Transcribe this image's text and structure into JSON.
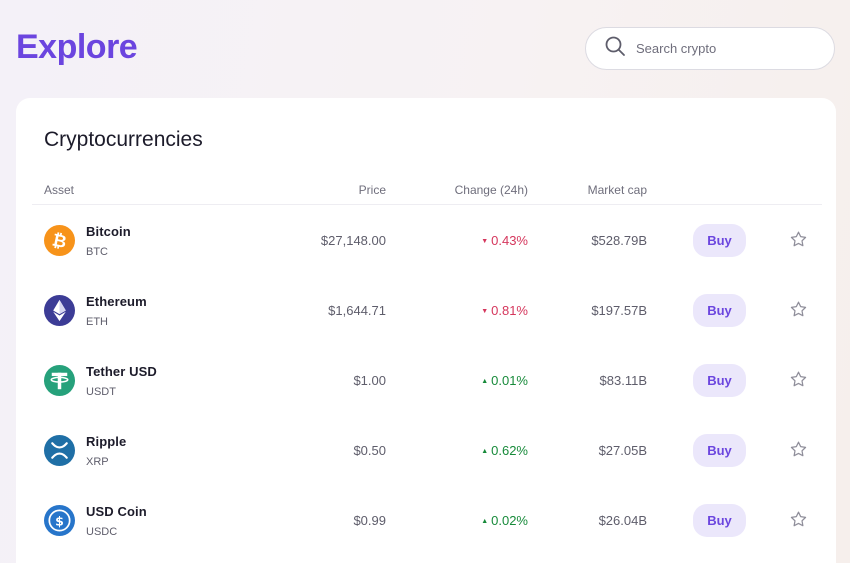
{
  "header": {
    "title": "Explore",
    "search": {
      "placeholder": "Search crypto",
      "value": ""
    }
  },
  "card": {
    "title": "Cryptocurrencies",
    "columns": {
      "asset": "Asset",
      "price": "Price",
      "change": "Change (24h)",
      "market_cap": "Market cap"
    }
  },
  "assets": [
    {
      "name": "Bitcoin",
      "ticker": "BTC",
      "price": "$27,148.00",
      "change": "0.43%",
      "direction": "down",
      "market_cap": "$528.79B",
      "buy_label": "Buy",
      "icon": "bitcoin-icon",
      "icon_color": "#f7931a"
    },
    {
      "name": "Ethereum",
      "ticker": "ETH",
      "price": "$1,644.71",
      "change": "0.81%",
      "direction": "down",
      "market_cap": "$197.57B",
      "buy_label": "Buy",
      "icon": "ethereum-icon",
      "icon_color": "#3c3c96"
    },
    {
      "name": "Tether USD",
      "ticker": "USDT",
      "price": "$1.00",
      "change": "0.01%",
      "direction": "up",
      "market_cap": "$83.11B",
      "buy_label": "Buy",
      "icon": "tether-icon",
      "icon_color": "#26a17b"
    },
    {
      "name": "Ripple",
      "ticker": "XRP",
      "price": "$0.50",
      "change": "0.62%",
      "direction": "up",
      "market_cap": "$27.05B",
      "buy_label": "Buy",
      "icon": "ripple-icon",
      "icon_color": "#1f6fa6"
    },
    {
      "name": "USD Coin",
      "ticker": "USDC",
      "price": "$0.99",
      "change": "0.02%",
      "direction": "up",
      "market_cap": "$26.04B",
      "buy_label": "Buy",
      "icon": "usd-coin-icon",
      "icon_color": "#2775ca"
    }
  ],
  "colors": {
    "accent": "#6b45df",
    "buy_bg": "#ebe7fb",
    "negative": "#d5365c",
    "positive": "#178a3a"
  }
}
